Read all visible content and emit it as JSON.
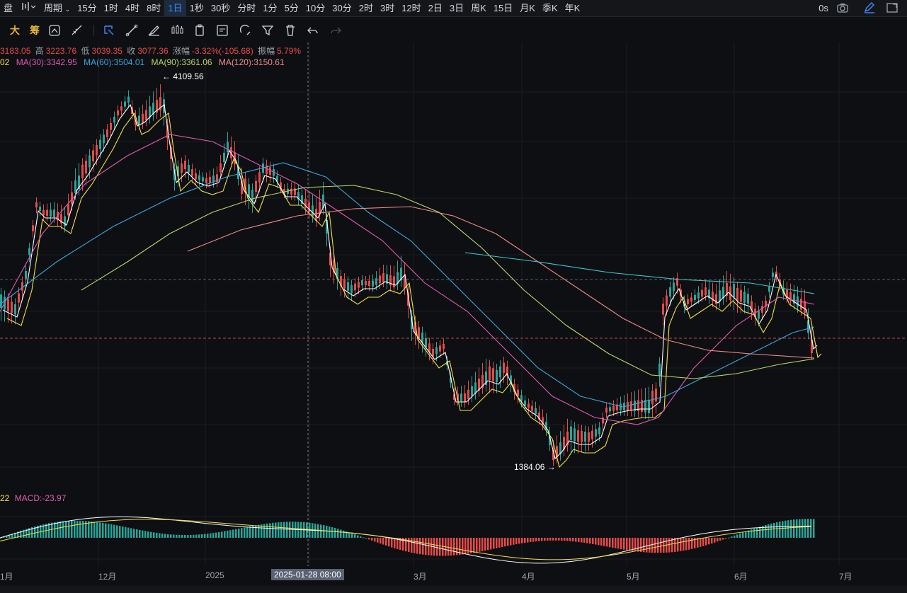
{
  "topbar": {
    "left_items": [
      "盘",
      "周期"
    ],
    "periods": [
      "15分",
      "1时",
      "4时",
      "8时",
      "1日",
      "1秒",
      "30秒",
      "分时",
      "1分",
      "5分",
      "10分",
      "30分",
      "2时",
      "3时",
      "12时",
      "2日",
      "3日",
      "周K",
      "15日",
      "月K",
      "季K",
      "年K"
    ],
    "active_period": "1日",
    "right_label": "0s"
  },
  "toolbar2": {
    "text_items": [
      "大",
      "筹"
    ]
  },
  "ohlc": {
    "open": "3183.05",
    "high_label": "高",
    "high": "3223.76",
    "low_label": "低",
    "low": "3039.35",
    "close_label": "收",
    "close": "3077.36",
    "change_label": "涨幅",
    "change": "-3.32%(-105.68)",
    "amplitude_label": "振幅",
    "amplitude": "5.79%"
  },
  "ma": {
    "prefix": "02",
    "ma30": "MA(30):3342.95",
    "ma60": "MA(60):3504.01",
    "ma90": "MA(90):3361.06",
    "ma120": "MA(120):3150.61",
    "colors": {
      "ma5": "#ffffff",
      "ma10": "#f2e04a",
      "ma30": "#e05ab0",
      "ma60": "#3aa6e0",
      "ma90": "#b8d86a",
      "ma120": "#f08a8a"
    }
  },
  "annotations": {
    "high_marker": "4109.56",
    "low_marker": "1384.06"
  },
  "macd": {
    "prefix": "22",
    "label": "MACD:-23.97"
  },
  "xaxis": {
    "ticks": [
      "1月",
      "12月",
      "2025",
      "3月",
      "4月",
      "5月",
      "6月",
      "7月"
    ],
    "crosshair_date": "2025-01-28 08:00"
  },
  "colors": {
    "up": "#26a69a",
    "down": "#e64a4a",
    "background": "#0e0f12",
    "accent": "#3a8dff"
  }
}
